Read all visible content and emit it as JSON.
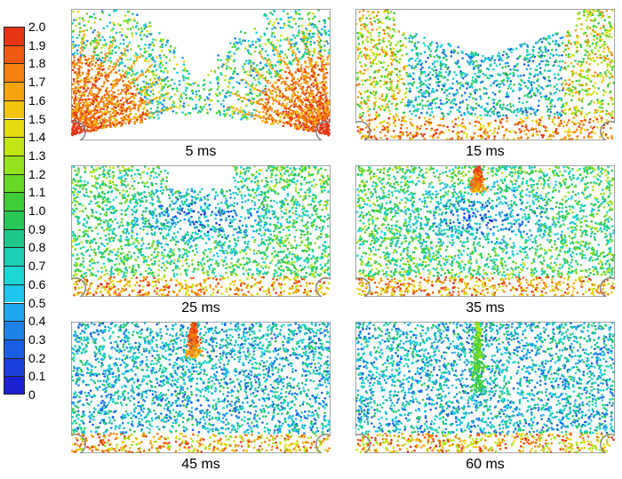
{
  "colorbar": {
    "ticks": [
      "2.0",
      "1.9",
      "1.8",
      "1.7",
      "1.6",
      "1.5",
      "1.4",
      "1.3",
      "1.2",
      "1.1",
      "1.0",
      "0.9",
      "0.8",
      "0.7",
      "0.6",
      "0.5",
      "0.4",
      "0.3",
      "0.2",
      "0.1",
      "0"
    ],
    "colors": [
      "#e53515",
      "#f05a10",
      "#f5800e",
      "#f6a40c",
      "#f2c40c",
      "#e6dc10",
      "#c2e614",
      "#94e21c",
      "#66d826",
      "#3fcd36",
      "#27c858",
      "#1ec88a",
      "#1ccfb4",
      "#1cd8d4",
      "#1dc6ec",
      "#1ea7ee",
      "#1d82ea",
      "#1b5ee4",
      "#1a3fdc",
      "#1a22d2"
    ]
  },
  "chart_data": [
    {
      "type": "scatter",
      "time_ms": 5,
      "label": "5 ms",
      "pattern": "jets"
    },
    {
      "type": "scatter",
      "time_ms": 15,
      "label": "15 ms",
      "pattern": "bowl"
    },
    {
      "type": "scatter",
      "time_ms": 25,
      "label": "25 ms",
      "pattern": "mixing"
    },
    {
      "type": "scatter",
      "time_ms": 35,
      "label": "35 ms",
      "pattern": "mixing-jet"
    },
    {
      "type": "scatter",
      "time_ms": 45,
      "label": "45 ms",
      "pattern": "uniform-jet"
    },
    {
      "type": "scatter",
      "time_ms": 60,
      "label": "60 ms",
      "pattern": "uniform-faint-jet"
    }
  ]
}
